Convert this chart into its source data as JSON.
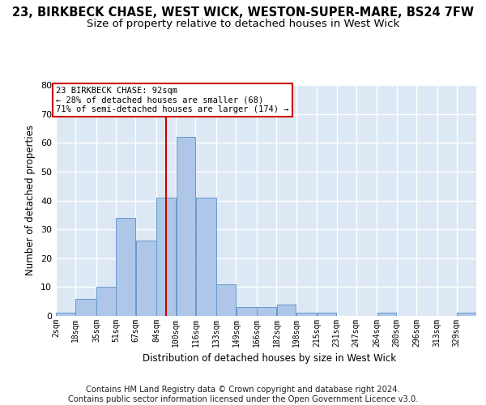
{
  "title": "23, BIRKBECK CHASE, WEST WICK, WESTON-SUPER-MARE, BS24 7FW",
  "subtitle": "Size of property relative to detached houses in West Wick",
  "xlabel": "Distribution of detached houses by size in West Wick",
  "ylabel": "Number of detached properties",
  "bar_values": [
    1,
    6,
    10,
    34,
    26,
    41,
    62,
    41,
    11,
    3,
    3,
    4,
    1,
    1,
    0,
    0,
    1,
    0,
    0,
    0,
    1
  ],
  "bin_labels": [
    "2sqm",
    "18sqm",
    "35sqm",
    "51sqm",
    "67sqm",
    "84sqm",
    "100sqm",
    "116sqm",
    "133sqm",
    "149sqm",
    "166sqm",
    "182sqm",
    "198sqm",
    "215sqm",
    "231sqm",
    "247sqm",
    "264sqm",
    "280sqm",
    "296sqm",
    "313sqm",
    "329sqm"
  ],
  "bin_edges": [
    2,
    18,
    35,
    51,
    67,
    84,
    100,
    116,
    133,
    149,
    166,
    182,
    198,
    215,
    231,
    247,
    264,
    280,
    296,
    313,
    329,
    345
  ],
  "bar_color": "#aec6e8",
  "bar_edge_color": "#6699cc",
  "vline_x": 92,
  "vline_color": "#cc0000",
  "annotation_line1": "23 BIRKBECK CHASE: 92sqm",
  "annotation_line2": "← 28% of detached houses are smaller (68)",
  "annotation_line3": "71% of semi-detached houses are larger (174) →",
  "annotation_box_edgecolor": "#cc0000",
  "ylim": [
    0,
    80
  ],
  "yticks": [
    0,
    10,
    20,
    30,
    40,
    50,
    60,
    70,
    80
  ],
  "bg_color": "#dde8f5",
  "grid_color": "#ffffff",
  "footer": "Contains HM Land Registry data © Crown copyright and database right 2024.\nContains public sector information licensed under the Open Government Licence v3.0."
}
